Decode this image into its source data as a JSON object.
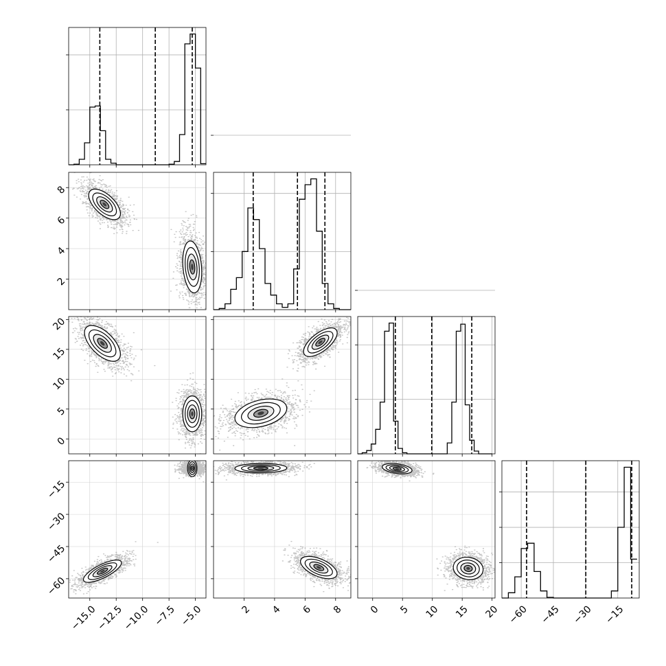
{
  "chart_data": {
    "type": "corner",
    "parameters": 4,
    "grid": true,
    "axes": [
      {
        "range": [
          -17,
          -4
        ],
        "ticks": [
          -15.0,
          -12.5,
          -10.0,
          -7.5,
          -5.0
        ],
        "tick_labels": [
          "−15.0",
          "−12.5",
          "−10.0",
          "−7.5",
          "−5.0"
        ]
      },
      {
        "range": [
          0,
          9
        ],
        "ticks": [
          2,
          4,
          6,
          8
        ],
        "tick_labels": [
          "2",
          "4",
          "6",
          "8"
        ]
      },
      {
        "range": [
          -2.5,
          20.5
        ],
        "ticks": [
          0,
          5,
          10,
          15,
          20
        ],
        "tick_labels": [
          "0",
          "5",
          "10",
          "15",
          "20"
        ]
      },
      {
        "range": [
          -69,
          -5
        ],
        "ticks": [
          -60,
          -45,
          -30,
          -15
        ],
        "tick_labels": [
          "−60",
          "−45",
          "−30",
          "−15"
        ]
      }
    ],
    "histograms": [
      {
        "param": 0,
        "bins": [
          -17,
          -16.5,
          -16,
          -15.5,
          -15,
          -14.5,
          -14,
          -13.5,
          -13,
          -12.5,
          -12,
          -11.5,
          -11,
          -10.5,
          -10,
          -9.5,
          -9,
          -8.5,
          -8,
          -7.5,
          -7,
          -6.5,
          -6,
          -5.5,
          -5,
          -4.5,
          -4
        ],
        "counts": [
          0,
          0.01,
          0.1,
          0.4,
          1.05,
          1.07,
          0.62,
          0.1,
          0.03,
          0,
          0,
          0,
          0,
          0,
          0,
          0,
          0,
          0,
          0,
          0.01,
          0.06,
          0.55,
          2.2,
          2.38,
          1.76,
          0.02
        ],
        "quantiles": [
          -14.05,
          -8.8,
          -5.3
        ]
      },
      {
        "param": 1,
        "bins": [
          0,
          0.375,
          0.75,
          1.125,
          1.5,
          1.875,
          2.25,
          2.625,
          3,
          3.375,
          3.75,
          4.125,
          4.5,
          4.875,
          5.25,
          5.625,
          6,
          6.375,
          6.75,
          7.125,
          7.5,
          7.875,
          8.25,
          8.625,
          9
        ],
        "counts": [
          0,
          0.02,
          0.1,
          0.35,
          0.55,
          1.0,
          1.75,
          1.55,
          1.05,
          0.45,
          0.25,
          0.1,
          0.04,
          0.1,
          0.7,
          1.9,
          2.15,
          2.25,
          1.35,
          0.45,
          0.1,
          0.02,
          0,
          0
        ],
        "quantiles": [
          2.6,
          5.5,
          7.3
        ]
      },
      {
        "param": 2,
        "bins": [
          -2.5,
          -1.75,
          -1,
          -0.25,
          0.5,
          1.25,
          2,
          2.75,
          3.5,
          4.25,
          5,
          5.75,
          6.5,
          7.25,
          8,
          8.75,
          9.5,
          10.25,
          11,
          11.75,
          12.5,
          13.25,
          14,
          14.75,
          15.5,
          16.25,
          17,
          17.75,
          18.5,
          19.25,
          20
        ],
        "counts": [
          0,
          0.02,
          0.06,
          0.18,
          0.45,
          0.95,
          2.25,
          2.4,
          0.6,
          0.1,
          0.02,
          0,
          0,
          0,
          0,
          0,
          0,
          0,
          0,
          0,
          0.2,
          0.95,
          2.25,
          2.38,
          0.9,
          0.25,
          0.05,
          0,
          0,
          0
        ],
        "quantiles": [
          3.8,
          9.9,
          16.6
        ]
      },
      {
        "param": 3,
        "bins": [
          -69,
          -66,
          -63,
          -60,
          -57,
          -54,
          -51,
          -48,
          -45,
          -42,
          -39,
          -36,
          -33,
          -30,
          -27,
          -24,
          -21,
          -18,
          -15,
          -12,
          -9,
          -6
        ],
        "counts": [
          0,
          0.15,
          0.6,
          1.4,
          1.55,
          0.75,
          0.2,
          0.02,
          0,
          0,
          0,
          0,
          0,
          0,
          0,
          0,
          0,
          0.2,
          2.0,
          3.7,
          1.1
        ],
        "quantiles": [
          -57.5,
          -29.9,
          -8.5
        ]
      }
    ],
    "pairs": [
      {
        "x": 0,
        "y": 1,
        "clusters": [
          {
            "mx": -13.6,
            "my": 6.9,
            "sx": 0.75,
            "sy": 0.5,
            "rho": -0.6,
            "w": 1
          },
          {
            "mx": -5.3,
            "my": 2.8,
            "sx": 0.45,
            "sy": 0.85,
            "rho": -0.2,
            "w": 1
          }
        ]
      },
      {
        "x": 0,
        "y": 2,
        "clusters": [
          {
            "mx": -13.8,
            "my": 16.0,
            "sx": 0.85,
            "sy": 1.5,
            "rho": -0.6,
            "w": 1
          },
          {
            "mx": -5.3,
            "my": 4.2,
            "sx": 0.45,
            "sy": 1.5,
            "rho": 0.0,
            "w": 1
          }
        ]
      },
      {
        "x": 1,
        "y": 2,
        "clusters": [
          {
            "mx": 3.1,
            "my": 4.3,
            "sx": 0.85,
            "sy": 1.2,
            "rho": 0.35,
            "w": 1
          },
          {
            "mx": 7.0,
            "my": 16.2,
            "sx": 0.55,
            "sy": 1.2,
            "rho": 0.65,
            "w": 1
          }
        ]
      },
      {
        "x": 0,
        "y": 3,
        "clusters": [
          {
            "mx": -13.8,
            "my": -56.5,
            "sx": 0.9,
            "sy": 2.6,
            "rho": 0.75,
            "w": 1
          },
          {
            "mx": -5.3,
            "my": -8.5,
            "sx": 0.4,
            "sy": 1.1,
            "rho": 0.0,
            "w": 1
          }
        ]
      },
      {
        "x": 1,
        "y": 3,
        "clusters": [
          {
            "mx": 3.1,
            "my": -8.5,
            "sx": 0.85,
            "sy": 1.1,
            "rho": 0.05,
            "w": 1
          },
          {
            "mx": 6.9,
            "my": -54.8,
            "sx": 0.6,
            "sy": 2.6,
            "rho": -0.55,
            "w": 1
          }
        ]
      },
      {
        "x": 2,
        "y": 3,
        "clusters": [
          {
            "mx": 4.1,
            "my": -8.7,
            "sx": 1.25,
            "sy": 1.2,
            "rho": -0.35,
            "w": 1
          },
          {
            "mx": 16.0,
            "my": -55.2,
            "sx": 1.25,
            "sy": 2.6,
            "rho": -0.1,
            "w": 1
          }
        ]
      }
    ],
    "histogram_y_ticks": [
      [
        1,
        2
      ],
      [
        1,
        2,
        3
      ],
      [
        1,
        2,
        3
      ],
      [
        1,
        2,
        3
      ]
    ],
    "left_axis_ticks": {
      "row1": {
        "ticks": [
          2,
          4,
          6,
          8
        ],
        "tick_labels": [
          "2",
          "4",
          "6",
          "8"
        ]
      },
      "row2": {
        "ticks": [
          0,
          5,
          10,
          15,
          20
        ],
        "tick_labels": [
          "0",
          "5",
          "10",
          "15",
          "20"
        ]
      },
      "row3": {
        "ticks": [
          -60,
          -45,
          -30,
          -15
        ],
        "tick_labels": [
          "−60",
          "−45",
          "−30",
          "−15"
        ]
      }
    }
  }
}
